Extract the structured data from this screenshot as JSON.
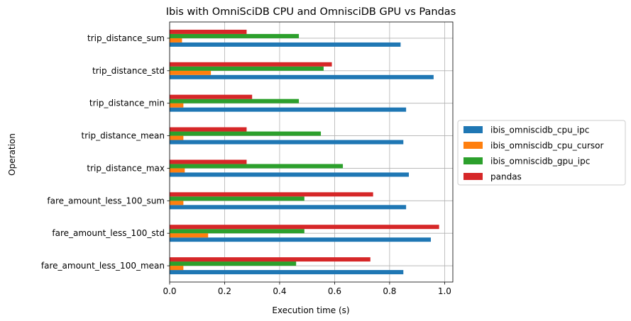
{
  "chart_data": {
    "type": "bar",
    "orientation": "horizontal",
    "title": "Ibis with OmniSciDB CPU and OmnisciDB GPU vs Pandas",
    "xlabel": "Execution time (s)",
    "ylabel": "Operation",
    "xlim": [
      0,
      1.03
    ],
    "xticks": [
      "0.0",
      "0.2",
      "0.4",
      "0.6",
      "0.8",
      "1.0"
    ],
    "xtick_values": [
      0,
      0.2,
      0.4,
      0.6,
      0.8,
      1.0
    ],
    "grid": true,
    "legend_position": "outside-right",
    "categories": [
      "fare_amount_less_100_mean",
      "fare_amount_less_100_std",
      "fare_amount_less_100_sum",
      "trip_distance_max",
      "trip_distance_mean",
      "trip_distance_min",
      "trip_distance_std",
      "trip_distance_sum"
    ],
    "series": [
      {
        "name": "ibis_omniscidb_cpu_ipc",
        "color": "#1f77b4",
        "values": [
          0.85,
          0.95,
          0.86,
          0.87,
          0.85,
          0.86,
          0.96,
          0.84
        ]
      },
      {
        "name": "ibis_omniscidb_cpu_cursor",
        "color": "#ff7f0e",
        "values": [
          0.05,
          0.14,
          0.05,
          0.055,
          0.05,
          0.05,
          0.15,
          0.045
        ]
      },
      {
        "name": "ibis_omniscidb_gpu_ipc",
        "color": "#2ca02c",
        "values": [
          0.46,
          0.49,
          0.49,
          0.63,
          0.55,
          0.47,
          0.56,
          0.47
        ]
      },
      {
        "name": "pandas",
        "color": "#d62728",
        "values": [
          0.73,
          0.98,
          0.74,
          0.28,
          0.28,
          0.3,
          0.59,
          0.28
        ]
      }
    ]
  }
}
